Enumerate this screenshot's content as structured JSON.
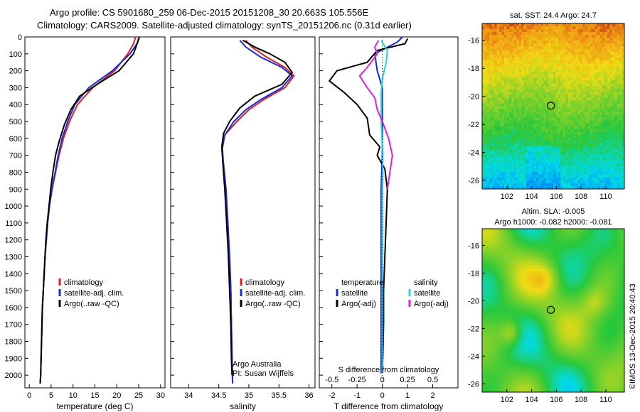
{
  "header": {
    "line1": "Argo profile: CS 5901680_259 06-Dec-2015 20151208_30 20.663S 105.556E",
    "line2": "Climatology: CARS2009. Satellite-adjusted climatology: synTS_20151206.nc (0.31d earlier)"
  },
  "side_label": "©IMOS 13-Dec-2015 20:40:43",
  "chart_data": [
    {
      "id": "temperature",
      "type": "line",
      "xlabel": "temperature (deg C)",
      "ylabel": "",
      "xlim": [
        -1,
        31
      ],
      "ylim": [
        2075,
        0
      ],
      "xticks": [
        0,
        5,
        10,
        15,
        20,
        25,
        30
      ],
      "yticks": [
        0,
        100,
        200,
        300,
        400,
        500,
        600,
        700,
        800,
        900,
        1000,
        1100,
        1200,
        1300,
        1400,
        1500,
        1600,
        1700,
        1800,
        1900,
        2000
      ],
      "legend": [
        "climatology",
        "satellite-adj. clim.",
        "Argo(..raw -QC)"
      ],
      "series": [
        {
          "name": "climatology",
          "color": "#e02020",
          "points": [
            [
              24.3,
              0
            ],
            [
              23.8,
              40
            ],
            [
              22.5,
              100
            ],
            [
              19.5,
              200
            ],
            [
              14.5,
              300
            ],
            [
              11,
              400
            ],
            [
              9.2,
              500
            ],
            [
              7.8,
              600
            ],
            [
              6.8,
              700
            ],
            [
              6,
              800
            ],
            [
              5.2,
              900
            ],
            [
              4.6,
              1000
            ],
            [
              4.2,
              1100
            ],
            [
              3.9,
              1200
            ],
            [
              3.6,
              1300
            ],
            [
              3.4,
              1400
            ],
            [
              3.2,
              1500
            ],
            [
              3,
              1600
            ],
            [
              2.9,
              1700
            ],
            [
              2.8,
              1800
            ],
            [
              2.7,
              1900
            ],
            [
              2.6,
              2000
            ],
            [
              2.5,
              2050
            ]
          ]
        },
        {
          "name": "satellite-adj. clim.",
          "color": "#1a2ad8",
          "points": [
            [
              25.2,
              0
            ],
            [
              24.6,
              40
            ],
            [
              23,
              100
            ],
            [
              19,
              200
            ],
            [
              13.6,
              300
            ],
            [
              10.4,
              400
            ],
            [
              8.8,
              500
            ],
            [
              7.5,
              600
            ],
            [
              6.6,
              700
            ],
            [
              5.9,
              800
            ],
            [
              5.2,
              900
            ],
            [
              4.6,
              1000
            ],
            [
              4.2,
              1100
            ],
            [
              3.9,
              1200
            ],
            [
              3.6,
              1300
            ],
            [
              3.4,
              1400
            ],
            [
              3.2,
              1500
            ],
            [
              3,
              1600
            ],
            [
              2.9,
              1700
            ],
            [
              2.8,
              1800
            ],
            [
              2.7,
              1900
            ],
            [
              2.6,
              2000
            ],
            [
              2.5,
              2050
            ]
          ]
        },
        {
          "name": "Argo(..raw -QC)",
          "color": "#000000",
          "points": [
            [
              25,
              5
            ],
            [
              24.8,
              30
            ],
            [
              23.8,
              100
            ],
            [
              20.5,
              200
            ],
            [
              15.5,
              280
            ],
            [
              11.5,
              350
            ],
            [
              9.5,
              430
            ],
            [
              8,
              520
            ],
            [
              6.8,
              620
            ],
            [
              6,
              700
            ],
            [
              5.4,
              800
            ],
            [
              4.9,
              900
            ],
            [
              4.5,
              1000
            ],
            [
              4.1,
              1100
            ],
            [
              3.8,
              1200
            ],
            [
              3.6,
              1300
            ],
            [
              3.4,
              1400
            ],
            [
              3.2,
              1500
            ],
            [
              3,
              1600
            ],
            [
              2.9,
              1700
            ],
            [
              2.8,
              1800
            ],
            [
              2.7,
              1900
            ],
            [
              2.6,
              2000
            ],
            [
              2.5,
              2050
            ]
          ]
        }
      ]
    },
    {
      "id": "salinity",
      "type": "line",
      "xlabel": "salinity",
      "ylabel": "",
      "xlim": [
        33.7,
        36.1
      ],
      "ylim": [
        2075,
        0
      ],
      "xticks": [
        34,
        34.5,
        35,
        35.5,
        36
      ],
      "legend": [
        "climatology",
        "satellite-adj. clim.",
        "Argo(..raw -QC)"
      ],
      "annotation": [
        "Argo Australia",
        "PI: Susan Wijffels"
      ],
      "series": [
        {
          "name": "climatology",
          "color": "#e02020",
          "points": [
            [
              34.95,
              20
            ],
            [
              35.05,
              60
            ],
            [
              35.3,
              120
            ],
            [
              35.6,
              180
            ],
            [
              35.75,
              230
            ],
            [
              35.6,
              300
            ],
            [
              35.25,
              370
            ],
            [
              35.0,
              430
            ],
            [
              34.8,
              500
            ],
            [
              34.6,
              580
            ],
            [
              34.55,
              650
            ],
            [
              34.58,
              750
            ],
            [
              34.62,
              900
            ],
            [
              34.65,
              1100
            ],
            [
              34.68,
              1300
            ],
            [
              34.7,
              1500
            ],
            [
              34.71,
              1700
            ],
            [
              34.72,
              1900
            ],
            [
              34.73,
              2050
            ]
          ]
        },
        {
          "name": "satellite-adj. clim.",
          "color": "#1a2ad8",
          "points": [
            [
              34.85,
              20
            ],
            [
              34.95,
              60
            ],
            [
              35.2,
              120
            ],
            [
              35.55,
              180
            ],
            [
              35.72,
              230
            ],
            [
              35.55,
              300
            ],
            [
              35.2,
              370
            ],
            [
              34.95,
              430
            ],
            [
              34.75,
              500
            ],
            [
              34.6,
              580
            ],
            [
              34.56,
              660
            ],
            [
              34.58,
              760
            ],
            [
              34.62,
              900
            ],
            [
              34.65,
              1100
            ],
            [
              34.68,
              1300
            ],
            [
              34.7,
              1500
            ],
            [
              34.71,
              1700
            ],
            [
              34.72,
              1900
            ],
            [
              34.73,
              2050
            ]
          ]
        },
        {
          "name": "Argo(..raw -QC)",
          "color": "#000000",
          "points": [
            [
              34.9,
              20
            ],
            [
              35.1,
              60
            ],
            [
              35.35,
              100
            ],
            [
              35.6,
              150
            ],
            [
              35.72,
              210
            ],
            [
              35.55,
              280
            ],
            [
              35.1,
              350
            ],
            [
              34.85,
              420
            ],
            [
              34.68,
              500
            ],
            [
              34.58,
              570
            ],
            [
              34.55,
              650
            ],
            [
              34.57,
              760
            ],
            [
              34.6,
              900
            ],
            [
              34.63,
              1100
            ],
            [
              34.66,
              1300
            ],
            [
              34.68,
              1500
            ],
            [
              34.7,
              1700
            ],
            [
              34.71,
              1900
            ],
            [
              34.72,
              2000
            ]
          ]
        }
      ]
    },
    {
      "id": "difference",
      "type": "line",
      "xlabel": "T difference from climatology",
      "top_label": "S difference from climatology",
      "xlim": [
        -2.5,
        3
      ],
      "ylim": [
        2075,
        0
      ],
      "xticks": [
        -2,
        -1,
        0,
        1,
        2
      ],
      "s_ticks": [
        "-0.5",
        "-0.25",
        "0",
        "0.25",
        "0.5"
      ],
      "legend_left_title": "temperature",
      "legend_right_title": "salinity",
      "legend_left": [
        "satellite",
        "Argo(-adj)"
      ],
      "legend_right": [
        "satellite",
        "Argo(-adj)"
      ],
      "series": [
        {
          "name": "T satellite",
          "color": "#1a2ad8",
          "points": [
            [
              0.8,
              0
            ],
            [
              0.6,
              30
            ],
            [
              -0.3,
              100
            ],
            [
              -0.2,
              200
            ],
            [
              0,
              300
            ],
            [
              0,
              500
            ],
            [
              0,
              700
            ],
            [
              -0.05,
              900
            ],
            [
              -0.05,
              1100
            ],
            [
              -0.05,
              1300
            ],
            [
              -0.05,
              1500
            ],
            [
              -0.05,
              1700
            ],
            [
              -0.05,
              1900
            ],
            [
              -0.05,
              1990
            ]
          ]
        },
        {
          "name": "T Argo(-adj)",
          "color": "#000000",
          "points": [
            [
              1,
              10
            ],
            [
              0.9,
              40
            ],
            [
              -0.2,
              80
            ],
            [
              -0.6,
              150
            ],
            [
              -1.8,
              200
            ],
            [
              -2.1,
              260
            ],
            [
              -1.5,
              330
            ],
            [
              -1.0,
              400
            ],
            [
              -0.6,
              480
            ],
            [
              -0.5,
              580
            ],
            [
              -0.1,
              650
            ],
            [
              -0.2,
              700
            ],
            [
              0.1,
              780
            ],
            [
              0.2,
              900
            ],
            [
              0.15,
              1100
            ],
            [
              0.1,
              1300
            ],
            [
              0.05,
              1500
            ],
            [
              0.05,
              1700
            ],
            [
              0.02,
              1900
            ],
            [
              0,
              1950
            ]
          ]
        },
        {
          "name": "S satellite",
          "color": "#20d8e0",
          "points": [
            [
              -0.05,
              20
            ],
            [
              0.2,
              80
            ],
            [
              0.15,
              150
            ],
            [
              0,
              250
            ],
            [
              -0.05,
              330
            ],
            [
              -0.05,
              500
            ],
            [
              0.02,
              700
            ],
            [
              0,
              900
            ],
            [
              0,
              1100
            ],
            [
              0,
              1300
            ],
            [
              0,
              1500
            ],
            [
              0,
              1700
            ],
            [
              0,
              1900
            ],
            [
              0,
              1990
            ]
          ]
        },
        {
          "name": "S Argo(-adj)",
          "color": "#e020d8",
          "points": [
            [
              -0.15,
              20
            ],
            [
              -0.3,
              60
            ],
            [
              -0.2,
              100
            ],
            [
              -0.6,
              180
            ],
            [
              -0.9,
              230
            ],
            [
              -0.6,
              300
            ],
            [
              -0.3,
              360
            ],
            [
              -0.2,
              430
            ],
            [
              0,
              500
            ],
            [
              0.25,
              600
            ],
            [
              0.4,
              700
            ],
            [
              0.3,
              800
            ],
            [
              0.2,
              900
            ]
          ]
        }
      ]
    },
    {
      "id": "sst_map",
      "type": "heatmap",
      "title": "sat. SST: 24.4  Argo: 24.7",
      "xlim": [
        100,
        111.5
      ],
      "ylim": [
        -26.6,
        -14.8
      ],
      "xticks": [
        102,
        104,
        106,
        108,
        110
      ],
      "yticks": [
        -16,
        -18,
        -20,
        -22,
        -24,
        -26
      ],
      "float_position": [
        105.556,
        -20.663
      ]
    },
    {
      "id": "sla_map",
      "type": "heatmap",
      "title": "Altim. SLA: -0.005",
      "subtitle": "Argo h1000: -0.082  h2000: -0.081",
      "xlim": [
        100,
        111.5
      ],
      "ylim": [
        -26.6,
        -14.8
      ],
      "xticks": [
        102,
        104,
        106,
        108,
        110
      ],
      "yticks": [
        -16,
        -18,
        -20,
        -22,
        -24,
        -26
      ],
      "float_position": [
        105.556,
        -20.663
      ]
    }
  ]
}
